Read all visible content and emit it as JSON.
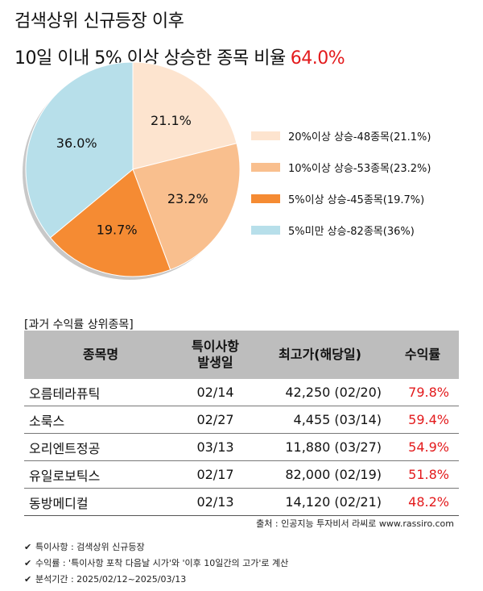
{
  "title_line1": "검색상위 신규등장 이후",
  "title_line2": "10일 이내 5% 이상 상승한 종목 비율",
  "title_ratio": "64.0%",
  "chart_data": {
    "type": "pie",
    "slices": [
      {
        "label": "21.1%",
        "value": 21.1,
        "legend": "20%이상 상승-48종목(21.1%)",
        "color": "#fde4cf"
      },
      {
        "label": "23.2%",
        "value": 23.2,
        "legend": "10%이상 상승-53종목(23.2%)",
        "color": "#f9bf8e"
      },
      {
        "label": "19.7%",
        "value": 19.7,
        "legend": "5%이상 상승-45종목(19.7%)",
        "color": "#f58b33"
      },
      {
        "label": "36.0%",
        "value": 36.0,
        "legend": "5%미만 상승-82종목(36%)",
        "color": "#b7dfea"
      }
    ]
  },
  "section_label": "[과거 수익률 상위종목]",
  "table": {
    "headers": {
      "name": "종목명",
      "date_line1": "특이사항",
      "date_line2": "발생일",
      "high": "최고가(해당일)",
      "ret": "수익률"
    },
    "rows": [
      {
        "name": "오름테라퓨틱",
        "date": "02/14",
        "high": "42,250 (02/20)",
        "ret": "79.8%"
      },
      {
        "name": "소룩스",
        "date": "02/27",
        "high": "4,455 (03/14)",
        "ret": "59.4%"
      },
      {
        "name": "오리엔트정공",
        "date": "03/13",
        "high": "11,880 (03/27)",
        "ret": "54.9%"
      },
      {
        "name": "유일로보틱스",
        "date": "02/17",
        "high": "82,000 (02/19)",
        "ret": "51.8%"
      },
      {
        "name": "동방메디컬",
        "date": "02/13",
        "high": "14,120 (02/21)",
        "ret": "48.2%"
      }
    ]
  },
  "source": "출처 : 인공지능 투자비서 라씨로 www.rassiro.com",
  "notes": [
    "특이사항 : 검색상위 신규등장",
    "수익률 : '특이사항 포착 다음날 시가'와 '이후 10일간의 고가'로 계산",
    "분석기간 : 2025/02/12~2025/03/13"
  ]
}
